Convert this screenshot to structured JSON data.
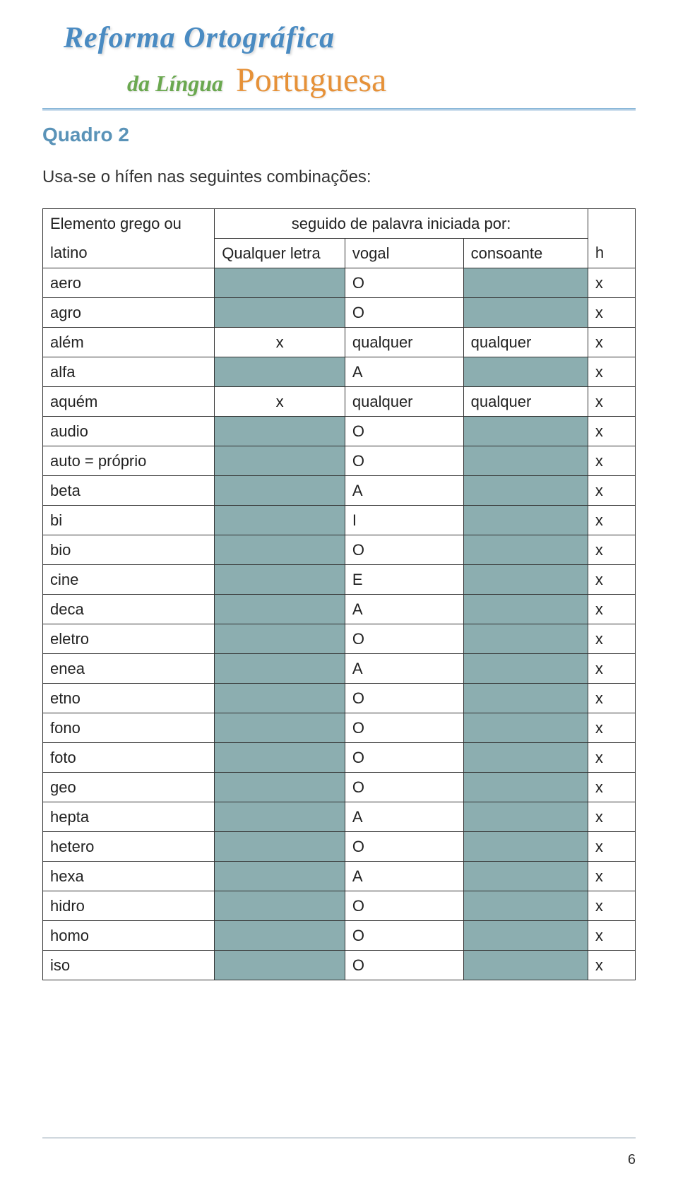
{
  "header": {
    "line1": "Reforma Ortográfica",
    "line2a": "da Língua",
    "line2b": "Portuguesa"
  },
  "quadro": "Quadro 2",
  "subtitle": "Usa-se o hífen nas seguintes combinações:",
  "table": {
    "header_merged": "seguido de palavra iniciada por:",
    "col_elem_l1": "Elemento grego ou",
    "col_elem_l2": "latino",
    "col_ql": "Qualquer letra",
    "col_vogal": "vogal",
    "col_cons": "consoante",
    "col_h": "h",
    "rows": [
      {
        "elem": "aero",
        "ql": "",
        "ql_shaded": true,
        "vogal": "O",
        "cons": "",
        "cons_shaded": true,
        "h": "x"
      },
      {
        "elem": "agro",
        "ql": "",
        "ql_shaded": true,
        "vogal": "O",
        "cons": "",
        "cons_shaded": true,
        "h": "x"
      },
      {
        "elem": "além",
        "ql": "x",
        "ql_shaded": false,
        "vogal": "qualquer",
        "cons": "qualquer",
        "cons_shaded": false,
        "h": "x"
      },
      {
        "elem": "alfa",
        "ql": "",
        "ql_shaded": true,
        "vogal": "A",
        "cons": "",
        "cons_shaded": true,
        "h": "x"
      },
      {
        "elem": "aquém",
        "ql": "x",
        "ql_shaded": false,
        "vogal": "qualquer",
        "cons": "qualquer",
        "cons_shaded": false,
        "h": "x"
      },
      {
        "elem": "audio",
        "ql": "",
        "ql_shaded": true,
        "vogal": "O",
        "cons": "",
        "cons_shaded": true,
        "h": "x"
      },
      {
        "elem": "auto = próprio",
        "ql": "",
        "ql_shaded": true,
        "vogal": "O",
        "cons": "",
        "cons_shaded": true,
        "h": "x"
      },
      {
        "elem": "beta",
        "ql": "",
        "ql_shaded": true,
        "vogal": "A",
        "cons": "",
        "cons_shaded": true,
        "h": "x"
      },
      {
        "elem": "bi",
        "ql": "",
        "ql_shaded": true,
        "vogal": "I",
        "cons": "",
        "cons_shaded": true,
        "h": "x"
      },
      {
        "elem": "bio",
        "ql": "",
        "ql_shaded": true,
        "vogal": "O",
        "cons": "",
        "cons_shaded": true,
        "h": "x"
      },
      {
        "elem": "cine",
        "ql": "",
        "ql_shaded": true,
        "vogal": "E",
        "cons": "",
        "cons_shaded": true,
        "h": "x"
      },
      {
        "elem": "deca",
        "ql": "",
        "ql_shaded": true,
        "vogal": "A",
        "cons": "",
        "cons_shaded": true,
        "h": "x"
      },
      {
        "elem": "eletro",
        "ql": "",
        "ql_shaded": true,
        "vogal": "O",
        "cons": "",
        "cons_shaded": true,
        "h": "x"
      },
      {
        "elem": "enea",
        "ql": "",
        "ql_shaded": true,
        "vogal": "A",
        "cons": "",
        "cons_shaded": true,
        "h": "x"
      },
      {
        "elem": "etno",
        "ql": "",
        "ql_shaded": true,
        "vogal": "O",
        "cons": "",
        "cons_shaded": true,
        "h": "x"
      },
      {
        "elem": "fono",
        "ql": "",
        "ql_shaded": true,
        "vogal": "O",
        "cons": "",
        "cons_shaded": true,
        "h": "x"
      },
      {
        "elem": "foto",
        "ql": "",
        "ql_shaded": true,
        "vogal": "O",
        "cons": "",
        "cons_shaded": true,
        "h": "x"
      },
      {
        "elem": "geo",
        "ql": "",
        "ql_shaded": true,
        "vogal": "O",
        "cons": "",
        "cons_shaded": true,
        "h": "x"
      },
      {
        "elem": "hepta",
        "ql": "",
        "ql_shaded": true,
        "vogal": "A",
        "cons": "",
        "cons_shaded": true,
        "h": "x"
      },
      {
        "elem": "hetero",
        "ql": "",
        "ql_shaded": true,
        "vogal": "O",
        "cons": "",
        "cons_shaded": true,
        "h": "x"
      },
      {
        "elem": "hexa",
        "ql": "",
        "ql_shaded": true,
        "vogal": "A",
        "cons": "",
        "cons_shaded": true,
        "h": "x"
      },
      {
        "elem": "hidro",
        "ql": "",
        "ql_shaded": true,
        "vogal": "O",
        "cons": "",
        "cons_shaded": true,
        "h": "x"
      },
      {
        "elem": "homo",
        "ql": "",
        "ql_shaded": true,
        "vogal": "O",
        "cons": "",
        "cons_shaded": true,
        "h": "x"
      },
      {
        "elem": "iso",
        "ql": "",
        "ql_shaded": true,
        "vogal": "O",
        "cons": "",
        "cons_shaded": true,
        "h": "x"
      }
    ]
  },
  "shaded_color": "#8caeb0",
  "page_number": "6"
}
